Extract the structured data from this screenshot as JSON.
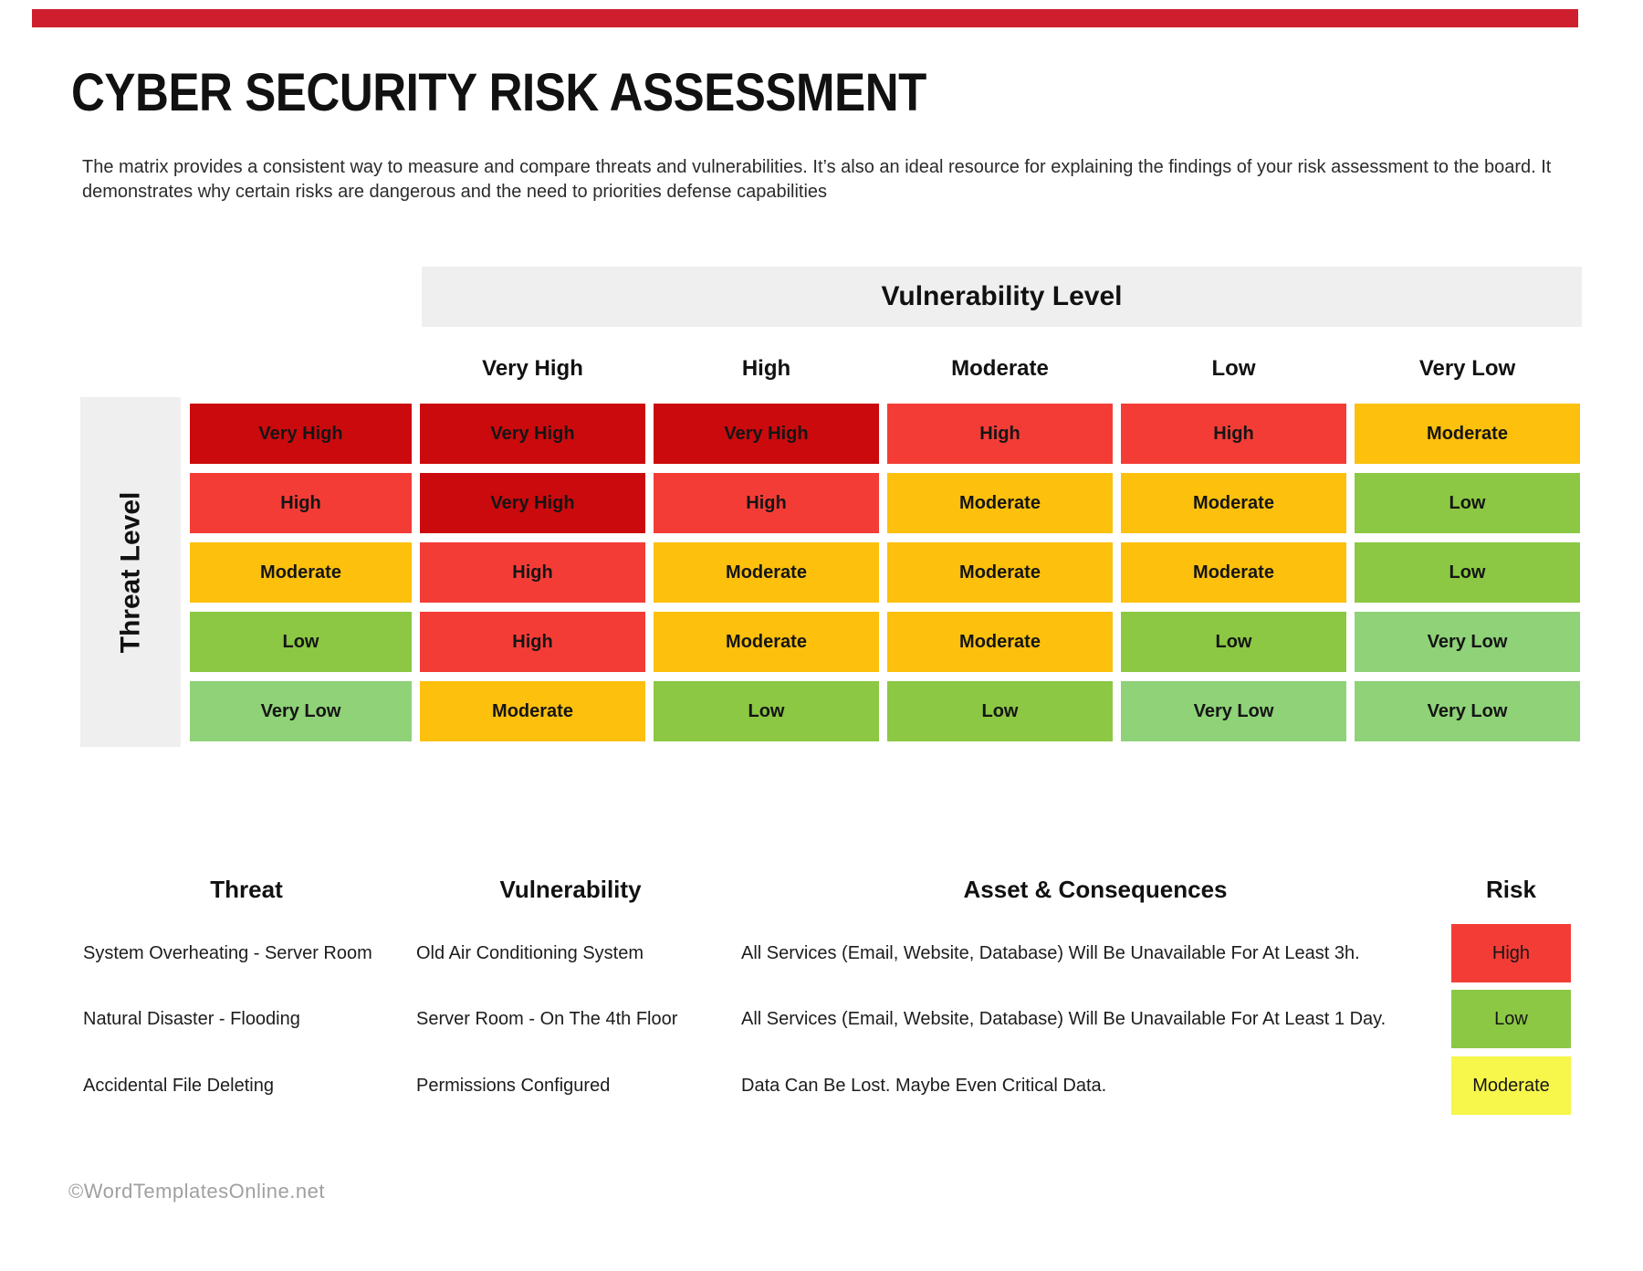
{
  "page": {
    "title": "CYBER SECURITY RISK ASSESSMENT",
    "description": "The matrix provides a consistent way to measure and compare threats and vulnerabilities. It’s also an ideal resource for explaining the findings of your risk assessment to the board. It demonstrates why certain risks are dangerous and the need to priorities defense capabilities",
    "footer": "©WordTemplatesOnline.net"
  },
  "colors": {
    "top_bar": "#cf1f2e",
    "band_gray": "#efefef",
    "very_high": "#cb0a0d",
    "high": "#f43c36",
    "moderate": "#fcc00d",
    "low": "#8cc843",
    "very_low": "#8fd278",
    "badge_high": "#f43c36",
    "badge_low": "#8cc843",
    "badge_moderate": "#f6f64b"
  },
  "matrix": {
    "column_axis_label": "Vulnerability Level",
    "row_axis_label": "Threat Level",
    "column_headers": [
      "Very High",
      "High",
      "Moderate",
      "Low",
      "Very Low"
    ],
    "rows": [
      {
        "label": "Very High",
        "level": "very_high",
        "cells": [
          {
            "label": "Very High",
            "level": "very_high"
          },
          {
            "label": "Very High",
            "level": "very_high"
          },
          {
            "label": "High",
            "level": "high"
          },
          {
            "label": "High",
            "level": "high"
          },
          {
            "label": "Moderate",
            "level": "moderate"
          }
        ]
      },
      {
        "label": "High",
        "level": "high",
        "cells": [
          {
            "label": "Very High",
            "level": "very_high"
          },
          {
            "label": "High",
            "level": "high"
          },
          {
            "label": "Moderate",
            "level": "moderate"
          },
          {
            "label": "Moderate",
            "level": "moderate"
          },
          {
            "label": "Low",
            "level": "low"
          }
        ]
      },
      {
        "label": "Moderate",
        "level": "moderate",
        "cells": [
          {
            "label": "High",
            "level": "high"
          },
          {
            "label": "Moderate",
            "level": "moderate"
          },
          {
            "label": "Moderate",
            "level": "moderate"
          },
          {
            "label": "Moderate",
            "level": "moderate"
          },
          {
            "label": "Low",
            "level": "low"
          }
        ]
      },
      {
        "label": "Low",
        "level": "low",
        "cells": [
          {
            "label": "High",
            "level": "high"
          },
          {
            "label": "Moderate",
            "level": "moderate"
          },
          {
            "label": "Moderate",
            "level": "moderate"
          },
          {
            "label": "Low",
            "level": "low"
          },
          {
            "label": "Very Low",
            "level": "very_low"
          }
        ]
      },
      {
        "label": "Very Low",
        "level": "very_low",
        "cells": [
          {
            "label": "Moderate",
            "level": "moderate"
          },
          {
            "label": "Low",
            "level": "low"
          },
          {
            "label": "Low",
            "level": "low"
          },
          {
            "label": "Very Low",
            "level": "very_low"
          },
          {
            "label": "Very Low",
            "level": "very_low"
          }
        ]
      }
    ]
  },
  "risk_table": {
    "headers": {
      "threat": "Threat",
      "vulnerability": "Vulnerability",
      "consequences": "Asset & Consequences",
      "risk": "Risk"
    },
    "rows": [
      {
        "threat": "System Overheating - Server Room",
        "vulnerability": "Old Air Conditioning System",
        "consequences": "All Services (Email, Website, Database) Will Be Unavailable For At Least 3h.",
        "risk": "High",
        "risk_level": "badge_high"
      },
      {
        "threat": "Natural Disaster - Flooding",
        "vulnerability": "Server Room - On The 4th Floor",
        "consequences": "All Services (Email, Website, Database) Will Be Unavailable For At Least 1 Day.",
        "risk": "Low",
        "risk_level": "badge_low"
      },
      {
        "threat": "Accidental File Deleting",
        "vulnerability": "Permissions Configured",
        "consequences": "Data Can Be Lost. Maybe Even Critical Data.",
        "risk": "Moderate",
        "risk_level": "badge_moderate"
      }
    ]
  }
}
